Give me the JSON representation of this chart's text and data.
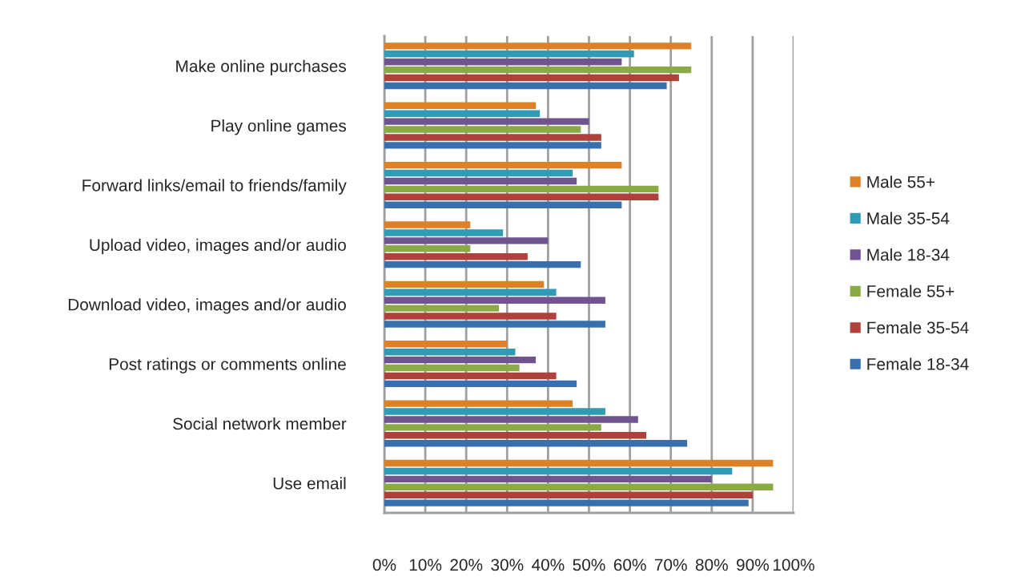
{
  "chart_data": {
    "type": "bar",
    "orientation": "horizontal",
    "categories": [
      "Make online purchases",
      "Play online games",
      "Forward links/email to friends/family",
      "Upload video, images and/or audio",
      "Download video, images and/or audio",
      "Post ratings or comments online",
      "Social network member",
      "Use email"
    ],
    "series": [
      {
        "name": "Male 55+",
        "color": "#de8126",
        "values": [
          75,
          37,
          58,
          21,
          39,
          30,
          46,
          95
        ]
      },
      {
        "name": "Male 35-54",
        "color": "#2f9bb5",
        "values": [
          61,
          38,
          46,
          29,
          42,
          32,
          54,
          85
        ]
      },
      {
        "name": "Male 18-34",
        "color": "#6f5490",
        "values": [
          58,
          50,
          47,
          40,
          54,
          37,
          62,
          80
        ]
      },
      {
        "name": "Female 55+",
        "color": "#8aaa45",
        "values": [
          75,
          48,
          67,
          21,
          28,
          33,
          53,
          95
        ]
      },
      {
        "name": "Female 35-54",
        "color": "#b0403c",
        "values": [
          72,
          53,
          67,
          35,
          42,
          42,
          64,
          90
        ]
      },
      {
        "name": "Female 18-34",
        "color": "#3a6fad",
        "values": [
          69,
          53,
          58,
          48,
          54,
          47,
          74,
          89
        ]
      }
    ],
    "xlim": [
      0,
      100
    ],
    "xticks": [
      {
        "value": 0,
        "label": "0%"
      },
      {
        "value": 10,
        "label": "10%"
      },
      {
        "value": 20,
        "label": "20%"
      },
      {
        "value": 30,
        "label": "30%"
      },
      {
        "value": 40,
        "label": "40%"
      },
      {
        "value": 50,
        "label": "50%"
      },
      {
        "value": 60,
        "label": "60%"
      },
      {
        "value": 70,
        "label": "70%"
      },
      {
        "value": 80,
        "label": "80%"
      },
      {
        "value": 90,
        "label": "90%"
      },
      {
        "value": 100,
        "label": "100%"
      }
    ],
    "grid": "x",
    "legend": "right"
  }
}
